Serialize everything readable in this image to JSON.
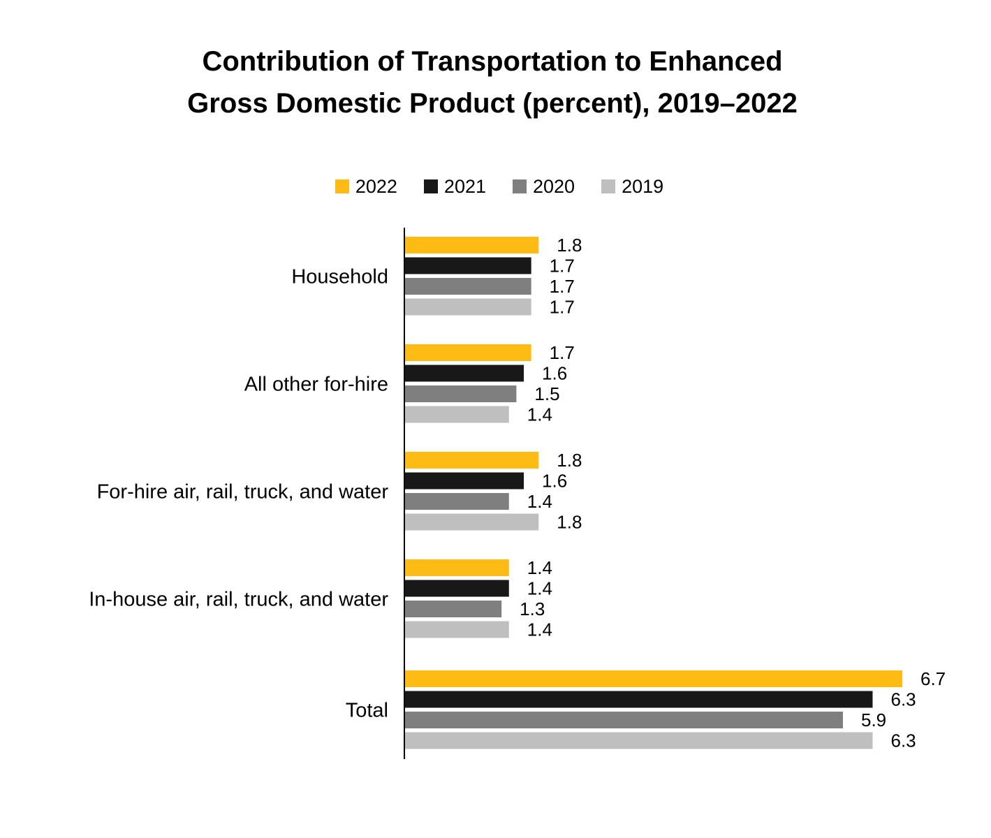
{
  "chart_data": {
    "type": "bar",
    "orientation": "horizontal",
    "title": "Contribution of Transportation to Enhanced Gross Domestic Product (percent), 2019–2022",
    "title_lines": [
      "Contribution of Transportation to Enhanced",
      "Gross Domestic Product (percent), 2019–2022"
    ],
    "categories": [
      "Household",
      "All other for-hire",
      "For-hire air, rail, truck, and water",
      "In-house air, rail, truck, and water",
      "Total"
    ],
    "series": [
      {
        "name": "2022",
        "color": "#FDBB13",
        "values": [
          1.8,
          1.7,
          1.8,
          1.4,
          6.7
        ],
        "labels": [
          "1.8",
          "1.7",
          "1.8",
          "1.4",
          "6.7"
        ]
      },
      {
        "name": "2021",
        "color": "#181818",
        "values": [
          1.7,
          1.6,
          1.6,
          1.4,
          6.3
        ],
        "labels": [
          "1.7",
          "1.6",
          "1.6",
          "1.4",
          "6.3"
        ]
      },
      {
        "name": "2020",
        "color": "#7F7F7F",
        "values": [
          1.7,
          1.5,
          1.4,
          1.3,
          5.9
        ],
        "labels": [
          "1.7",
          "1.5",
          "1.4",
          "1.3",
          "5.9"
        ]
      },
      {
        "name": "2019",
        "color": "#BFBFBF",
        "values": [
          1.7,
          1.4,
          1.8,
          1.4,
          6.3
        ],
        "labels": [
          "1.7",
          "1.4",
          "1.8",
          "1.4",
          "6.3"
        ]
      }
    ],
    "xlabel": "",
    "ylabel": "",
    "xlim": [
      0,
      6.7
    ],
    "grid": false,
    "legend": "top-center"
  }
}
